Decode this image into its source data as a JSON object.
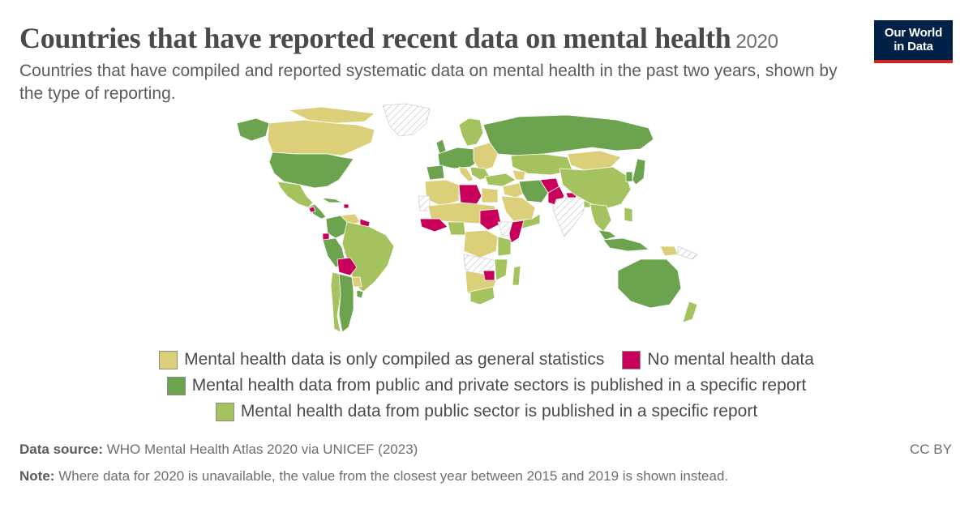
{
  "header": {
    "title": "Countries that have reported recent data on mental health",
    "year": "2020",
    "subtitle": "Countries that have compiled and reported systematic data on mental health in the past two years, shown by the type of reporting."
  },
  "logo": {
    "line1": "Our World",
    "line2": "in Data"
  },
  "colors": {
    "general_statistics": "#dccf7a",
    "no_data": "#c8005a",
    "public_private": "#6ba34e",
    "public_sector": "#a4c25d",
    "missing": "#e8e8e8",
    "border": "#ffffff"
  },
  "legend": {
    "items": [
      {
        "key": "general_statistics",
        "label": "Mental health data is only compiled as general statistics"
      },
      {
        "key": "no_data",
        "label": "No mental health data"
      },
      {
        "key": "public_private",
        "label": "Mental health data from public and private sectors is published in a specific report"
      },
      {
        "key": "public_sector",
        "label": "Mental health data from public sector is published in a specific report"
      }
    ]
  },
  "footer": {
    "source_label": "Data source:",
    "source_text": "WHO Mental Health Atlas 2020 via UNICEF (2023)",
    "license": "CC BY",
    "note_label": "Note:",
    "note_text": "Where data for 2020 is unavailable, the value from the closest year between 2015 and 2019 is shown instead."
  }
}
